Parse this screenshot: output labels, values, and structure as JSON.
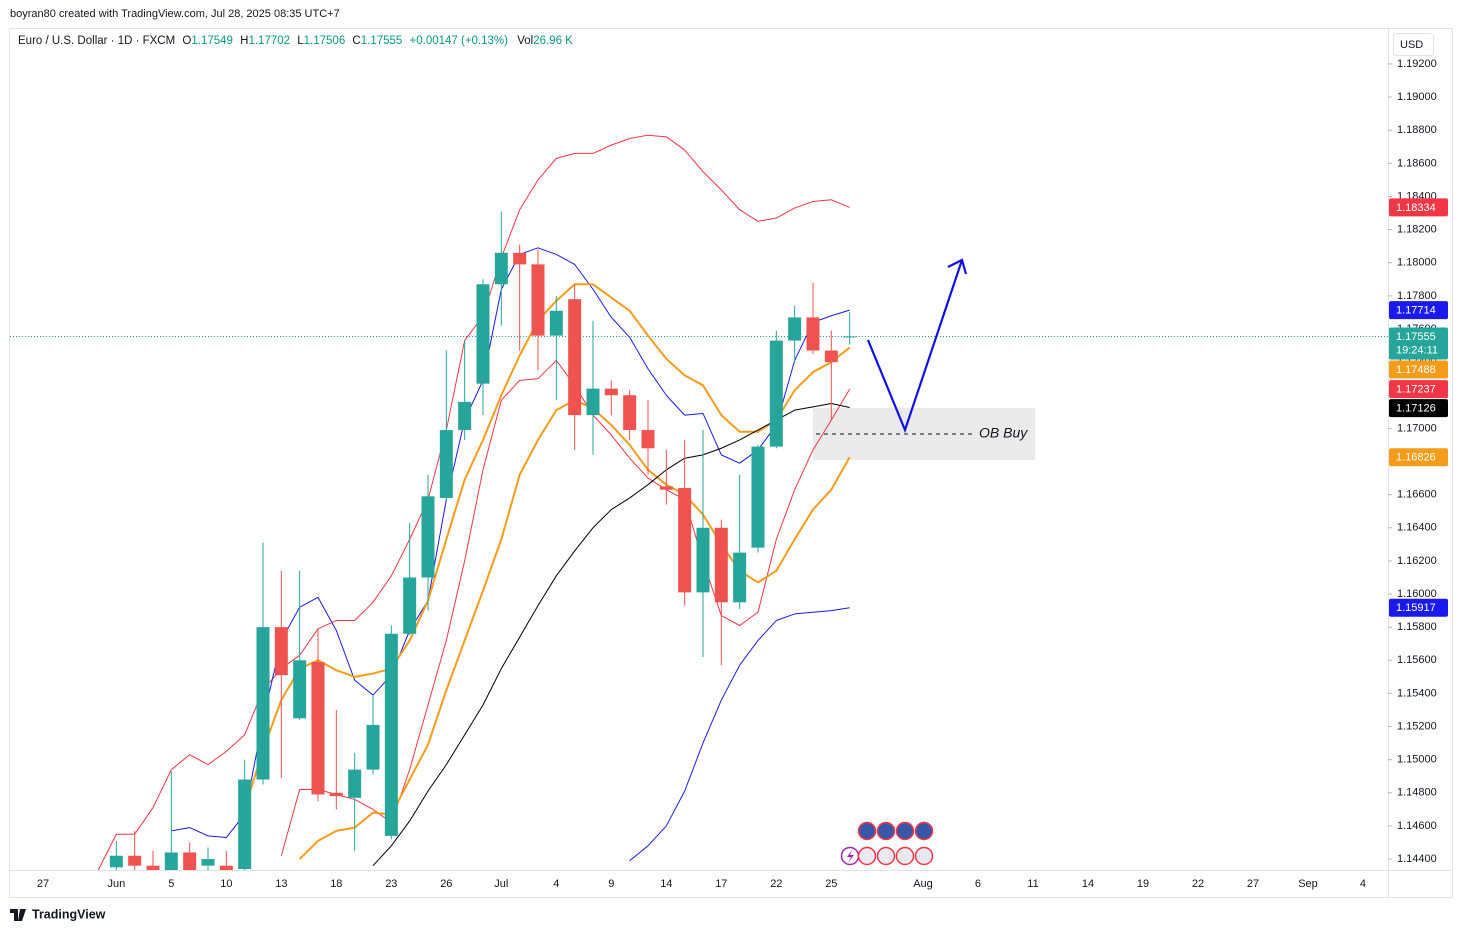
{
  "header": {
    "credit": "boyran80 created with TradingView.com, Jul 28, 2025 08:35 UTC+7"
  },
  "footer": {
    "brand": "TradingView"
  },
  "chart_data": {
    "type": "candlestick",
    "currency": "USD",
    "legend": {
      "symbol": "Euro / U.S. Dollar · 1D · FXCM",
      "open_label": "O",
      "open": 1.17549,
      "high_label": "H",
      "high": 1.17702,
      "low_label": "L",
      "low": 1.17506,
      "close_label": "C",
      "close": 1.17555,
      "change": "+0.00147 (+0.13%)",
      "volume_label": "Vol",
      "volume": "26.96 K"
    },
    "categories": [
      "27",
      null,
      null,
      null,
      "Jun",
      null,
      null,
      "5",
      null,
      null,
      "10",
      null,
      null,
      "13",
      null,
      null,
      "18",
      null,
      null,
      "23",
      null,
      null,
      "26",
      null,
      null,
      "Jul",
      null,
      null,
      "4",
      null,
      null,
      "9",
      null,
      null,
      "14",
      null,
      null,
      "17",
      null,
      null,
      "22",
      null,
      null,
      "25",
      null,
      null,
      null,
      null,
      "Aug",
      null,
      null,
      "6",
      null,
      null,
      "11",
      null,
      null,
      "14",
      null,
      null,
      "19",
      null,
      null,
      "22",
      null,
      null,
      "27",
      null,
      null,
      "Sep",
      null,
      null,
      "4",
      null
    ],
    "open": [
      null,
      null,
      null,
      null,
      1.1435,
      1.1442,
      1.1436,
      1.143,
      1.1444,
      1.1436,
      1.1436,
      1.1434,
      1.1488,
      1.158,
      1.1525,
      1.1559,
      1.148,
      1.1477,
      1.1494,
      1.1454,
      1.1576,
      1.161,
      1.1658,
      1.1699,
      1.1727,
      1.1787,
      1.1806,
      1.1799,
      1.1756,
      1.1778,
      1.1708,
      1.1724,
      1.172,
      1.1699,
      1.1665,
      1.1664,
      1.1601,
      1.164,
      1.1595,
      1.1628,
      1.1689,
      1.1753,
      1.1767,
      1.1747,
      1.17549,
      null,
      null,
      null,
      null,
      null,
      null,
      null,
      null,
      null,
      null,
      null,
      null,
      null,
      null,
      null,
      null,
      null,
      null,
      null,
      null,
      null,
      null,
      null,
      null,
      null,
      null,
      null,
      null,
      null
    ],
    "high": [
      null,
      null,
      null,
      null,
      1.1451,
      1.1457,
      1.1445,
      1.1493,
      1.145,
      1.1447,
      1.1445,
      1.15,
      1.1631,
      1.1614,
      1.1614,
      1.1579,
      1.153,
      1.1504,
      1.1539,
      1.1581,
      1.1643,
      1.1672,
      1.1747,
      1.1753,
      1.179,
      1.1831,
      1.1811,
      1.1808,
      1.178,
      1.1787,
      1.1765,
      1.1729,
      1.1723,
      1.1717,
      1.1687,
      1.1693,
      1.1699,
      1.1645,
      1.1672,
      1.169,
      1.1759,
      1.1774,
      1.1788,
      1.1759,
      1.17702,
      null,
      null,
      null,
      null,
      null,
      null,
      null,
      null,
      null,
      null,
      null,
      null,
      null,
      null,
      null,
      null,
      null,
      null,
      null,
      null,
      null,
      null,
      null,
      null,
      null,
      null,
      null,
      null,
      null
    ],
    "low": [
      null,
      null,
      null,
      null,
      1.143,
      1.1428,
      1.142,
      1.1425,
      1.1425,
      1.143,
      1.1425,
      1.1428,
      1.1485,
      1.1489,
      1.1524,
      1.1475,
      1.147,
      1.1445,
      1.1491,
      1.1452,
      1.1575,
      1.159,
      1.1656,
      1.1693,
      1.1708,
      1.1762,
      1.1747,
      1.1735,
      1.1717,
      1.1687,
      1.1684,
      1.1708,
      1.1693,
      1.1672,
      1.1654,
      1.1593,
      1.1562,
      1.1557,
      1.1591,
      1.1625,
      1.1688,
      1.174,
      1.1745,
      1.1705,
      1.17506,
      null,
      null,
      null,
      null,
      null,
      null,
      null,
      null,
      null,
      null,
      null,
      null,
      null,
      null,
      null,
      null,
      null,
      null,
      null,
      null,
      null,
      null,
      null,
      null,
      null,
      null,
      null,
      null,
      null
    ],
    "close": [
      null,
      null,
      null,
      null,
      1.1442,
      1.1436,
      1.143,
      1.1444,
      1.1432,
      1.144,
      1.1432,
      1.1488,
      1.158,
      1.1551,
      1.156,
      1.1479,
      1.1478,
      1.1494,
      1.1521,
      1.1576,
      1.161,
      1.1659,
      1.1699,
      1.1716,
      1.1787,
      1.1806,
      1.1799,
      1.1756,
      1.1771,
      1.1708,
      1.1724,
      1.172,
      1.1699,
      1.1688,
      1.1663,
      1.1601,
      1.164,
      1.1595,
      1.1625,
      1.1689,
      1.1753,
      1.1767,
      1.1747,
      1.174,
      1.17555,
      null,
      null,
      null,
      null,
      null,
      null,
      null,
      null,
      null,
      null,
      null,
      null,
      null,
      null,
      null,
      null,
      null,
      null,
      null,
      null,
      null,
      null,
      null,
      null,
      null,
      null,
      null,
      null,
      null
    ],
    "up_color": "#26a69a",
    "down_color": "#ef5350",
    "series": [
      {
        "color": "#f23645",
        "width": 1,
        "values": [
          null,
          null,
          null,
          1.1433,
          1.1455,
          1.1455,
          1.1471,
          1.1494,
          1.1503,
          1.1497,
          1.1505,
          1.1515,
          1.1542,
          1.1555,
          1.1563,
          1.1579,
          1.1584,
          1.1584,
          1.1595,
          1.1611,
          1.1633,
          1.1657,
          1.1699,
          1.1753,
          1.1768,
          1.1803,
          1.1832,
          1.185,
          1.1863,
          1.1866,
          1.1866,
          1.1871,
          1.1875,
          1.1877,
          1.1876,
          1.1868,
          1.1855,
          1.1844,
          1.1832,
          1.1825,
          1.1827,
          1.1833,
          1.1837,
          1.1838,
          1.18334,
          null,
          null,
          null,
          null,
          null,
          null,
          null,
          null,
          null,
          null,
          null,
          null,
          null,
          null,
          null,
          null,
          null,
          null,
          null,
          null,
          null,
          null,
          null,
          null,
          null,
          null,
          null,
          null,
          null
        ]
      },
      {
        "color": "#1a1aee",
        "width": 1,
        "values": [
          null,
          null,
          null,
          null,
          null,
          null,
          null,
          1.1457,
          1.1459,
          1.1454,
          1.1453,
          1.1467,
          1.1524,
          1.1572,
          1.1592,
          1.1598,
          1.1578,
          1.1548,
          1.1539,
          1.1551,
          1.1578,
          1.1596,
          1.1657,
          1.1705,
          1.1729,
          1.1784,
          1.1805,
          1.1809,
          1.1805,
          1.1799,
          1.1784,
          1.1767,
          1.1755,
          1.1736,
          1.172,
          1.1708,
          1.1709,
          1.1684,
          1.1679,
          1.1687,
          1.1702,
          1.1741,
          1.1764,
          1.1768,
          1.17714,
          null,
          null,
          null,
          null,
          null,
          null,
          null,
          null,
          null,
          null,
          null,
          null,
          null,
          null,
          null,
          null,
          null,
          null,
          null,
          null,
          null,
          null,
          null,
          null,
          null,
          null,
          null,
          null,
          null
        ]
      },
      {
        "color": "#f59c1a",
        "width": 2,
        "values": [
          null,
          null,
          null,
          null,
          null,
          null,
          null,
          null,
          null,
          null,
          null,
          1.147,
          1.1506,
          1.1536,
          1.1555,
          1.156,
          1.1554,
          1.155,
          1.1552,
          1.1555,
          1.1572,
          1.1596,
          1.1633,
          1.1669,
          1.1693,
          1.172,
          1.1744,
          1.1765,
          1.1777,
          1.1787,
          1.1787,
          1.1779,
          1.1771,
          1.1756,
          1.1742,
          1.1732,
          1.1726,
          1.1708,
          1.1698,
          1.1698,
          1.1705,
          1.1723,
          1.1734,
          1.174,
          1.17488,
          null,
          null,
          null,
          null,
          null,
          null,
          null,
          null,
          null,
          null,
          null,
          null,
          null,
          null,
          null,
          null,
          null,
          null,
          null,
          null,
          null,
          null,
          null,
          null,
          null,
          null,
          null,
          null,
          null
        ]
      },
      {
        "color": "#f23645",
        "width": 1,
        "values": [
          null,
          null,
          null,
          null,
          null,
          null,
          null,
          null,
          null,
          null,
          null,
          null,
          null,
          1.1442,
          1.1482,
          1.1482,
          1.1479,
          1.1476,
          1.147,
          1.1462,
          1.1494,
          1.1533,
          1.1572,
          1.162,
          1.1675,
          1.1717,
          1.1729,
          1.173,
          1.1741,
          1.1726,
          1.1708,
          1.1696,
          1.1682,
          1.167,
          1.1663,
          1.1657,
          1.162,
          1.1587,
          1.1581,
          1.1589,
          1.1633,
          1.1663,
          1.1687,
          1.1705,
          1.17237,
          null,
          null,
          null,
          null,
          null,
          null,
          null,
          null,
          null,
          null,
          null,
          null,
          null,
          null,
          null,
          null,
          null,
          null,
          null,
          null,
          null,
          null,
          null,
          null,
          null,
          null,
          null,
          null,
          null
        ]
      },
      {
        "color": "#f59c1a",
        "width": 2,
        "values": [
          null,
          null,
          null,
          null,
          null,
          null,
          null,
          null,
          null,
          null,
          null,
          null,
          null,
          null,
          1.144,
          1.1451,
          1.1457,
          1.1459,
          1.1468,
          1.1467,
          1.1488,
          1.1509,
          1.1542,
          1.1572,
          1.1602,
          1.1633,
          1.1672,
          1.1693,
          1.1711,
          1.1717,
          1.1712,
          1.1702,
          1.169,
          1.1675,
          1.1666,
          1.166,
          1.1648,
          1.163,
          1.1614,
          1.1607,
          1.1614,
          1.1633,
          1.1651,
          1.1663,
          1.16826,
          null,
          null,
          null,
          null,
          null,
          null,
          null,
          null,
          null,
          null,
          null,
          null,
          null,
          null,
          null,
          null,
          null,
          null,
          null,
          null,
          null,
          null,
          null,
          null,
          null,
          null,
          null,
          null,
          null
        ]
      },
      {
        "color": "#000000",
        "width": 1,
        "values": [
          null,
          null,
          null,
          null,
          null,
          null,
          null,
          null,
          null,
          null,
          null,
          null,
          null,
          null,
          null,
          null,
          null,
          null,
          1.1436,
          1.1448,
          1.1463,
          1.1481,
          1.1497,
          1.1515,
          1.1533,
          1.1555,
          1.1574,
          1.1593,
          1.1611,
          1.1626,
          1.164,
          1.1651,
          1.1658,
          1.1666,
          1.1675,
          1.1682,
          1.1684,
          1.1688,
          1.1693,
          1.1699,
          1.1705,
          1.1711,
          1.1713,
          1.1715,
          1.17126,
          null,
          null,
          null,
          null,
          null,
          null,
          null,
          null,
          null,
          null,
          null,
          null,
          null,
          null,
          null,
          null,
          null,
          null,
          null,
          null,
          null,
          null,
          null,
          null,
          null,
          null,
          null,
          null,
          null
        ]
      },
      {
        "color": "#1a1aee",
        "width": 1,
        "values": [
          null,
          null,
          null,
          null,
          null,
          null,
          null,
          null,
          null,
          null,
          null,
          null,
          null,
          null,
          null,
          null,
          null,
          null,
          null,
          null,
          null,
          null,
          null,
          null,
          null,
          null,
          null,
          null,
          null,
          null,
          null,
          null,
          1.1439,
          1.1448,
          1.146,
          1.1481,
          1.151,
          1.1536,
          1.1557,
          1.1572,
          1.1584,
          1.1588,
          1.1589,
          1.159,
          1.15917,
          null,
          null,
          null,
          null,
          null,
          null,
          null,
          null,
          null,
          null,
          null,
          null,
          null,
          null,
          null,
          null,
          null,
          null,
          null,
          null,
          null,
          null,
          null,
          null,
          null,
          null,
          null,
          null,
          null
        ]
      }
    ],
    "ylim": [
      1.14334,
      1.19405
    ],
    "yticks": [
      {
        "value": 1.192,
        "label": "1.19200"
      },
      {
        "value": 1.19,
        "label": "1.19000"
      },
      {
        "value": 1.188,
        "label": "1.18800"
      },
      {
        "value": 1.186,
        "label": "1.18600"
      },
      {
        "value": 1.184,
        "label": "1.18400"
      },
      {
        "value": 1.182,
        "label": "1.18200"
      },
      {
        "value": 1.18,
        "label": "1.18000"
      },
      {
        "value": 1.178,
        "label": "1.17800"
      },
      {
        "value": 1.176,
        "label": "1.17600"
      },
      {
        "value": 1.174,
        "label": "1.17400"
      },
      {
        "value": 1.172,
        "label": "1.17200"
      },
      {
        "value": 1.17,
        "label": "1.17000"
      },
      {
        "value": 1.168,
        "label": "1.16800"
      },
      {
        "value": 1.166,
        "label": "1.16600"
      },
      {
        "value": 1.164,
        "label": "1.16400"
      },
      {
        "value": 1.162,
        "label": "1.16200"
      },
      {
        "value": 1.16,
        "label": "1.16000"
      },
      {
        "value": 1.158,
        "label": "1.15800"
      },
      {
        "value": 1.156,
        "label": "1.15600"
      },
      {
        "value": 1.154,
        "label": "1.15400"
      },
      {
        "value": 1.152,
        "label": "1.15200"
      },
      {
        "value": 1.15,
        "label": "1.15000"
      },
      {
        "value": 1.148,
        "label": "1.14800"
      },
      {
        "value": 1.146,
        "label": "1.14600"
      },
      {
        "value": 1.144,
        "label": "1.14400"
      }
    ],
    "grid": false,
    "price_labels": [
      {
        "value": 1.18334,
        "color": "#f23645"
      },
      {
        "value": 1.17714,
        "color": "#1a1aee"
      },
      {
        "value": 1.17555,
        "color": "#26a69a",
        "countdown": "19:24:11",
        "dotted_line": true
      },
      {
        "value": 1.17488,
        "color": "#f59c1a"
      },
      {
        "value": 1.17237,
        "color": "#f23645"
      },
      {
        "value": 1.17126,
        "color": "#000000"
      },
      {
        "value": 1.16826,
        "color": "#f59c1a"
      },
      {
        "value": 1.15917,
        "color": "#1a1aee"
      }
    ],
    "annotation": "OB Buy"
  }
}
